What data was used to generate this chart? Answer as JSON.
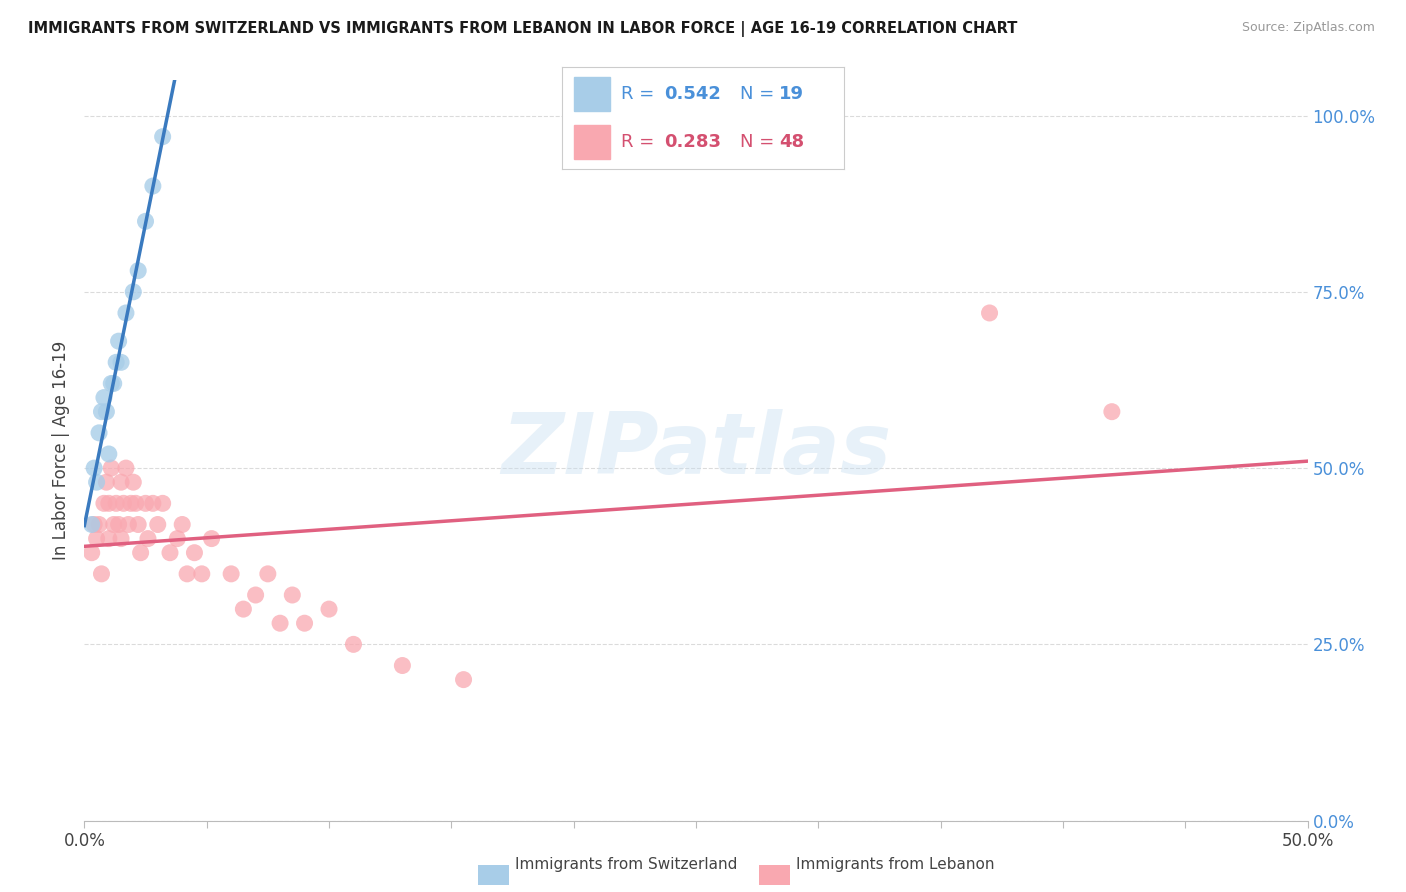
{
  "title": "IMMIGRANTS FROM SWITZERLAND VS IMMIGRANTS FROM LEBANON IN LABOR FORCE | AGE 16-19 CORRELATION CHART",
  "source": "Source: ZipAtlas.com",
  "ylabel": "In Labor Force | Age 16-19",
  "xlim": [
    0.0,
    0.5
  ],
  "ylim": [
    0.0,
    1.05
  ],
  "yticks": [
    0.0,
    0.25,
    0.5,
    0.75,
    1.0
  ],
  "ytick_labels": [
    "0.0%",
    "25.0%",
    "50.0%",
    "75.0%",
    "100.0%"
  ],
  "xtick_labels_shown": [
    "0.0%",
    "50.0%"
  ],
  "xtick_positions_shown": [
    0.0,
    0.5
  ],
  "color_switzerland": "#a8cde8",
  "color_lebanon": "#f9a8b0",
  "color_trendline_switzerland": "#3a7abf",
  "color_trendline_lebanon": "#e06080",
  "color_ytick": "#4a90d9",
  "watermark_text": "ZIPatlas",
  "legend_sw_r": "0.542",
  "legend_sw_n": "19",
  "legend_lb_r": "0.283",
  "legend_lb_n": "48",
  "background_color": "#ffffff",
  "grid_color": "#d8d8d8",
  "switzerland_x": [
    0.003,
    0.004,
    0.005,
    0.006,
    0.007,
    0.008,
    0.009,
    0.01,
    0.011,
    0.012,
    0.013,
    0.014,
    0.015,
    0.017,
    0.02,
    0.022,
    0.025,
    0.028,
    0.032
  ],
  "switzerland_y": [
    0.42,
    0.5,
    0.48,
    0.55,
    0.58,
    0.6,
    0.58,
    0.52,
    0.62,
    0.62,
    0.65,
    0.68,
    0.65,
    0.72,
    0.75,
    0.78,
    0.85,
    0.9,
    0.97
  ],
  "lebanon_x": [
    0.003,
    0.004,
    0.005,
    0.006,
    0.007,
    0.008,
    0.009,
    0.01,
    0.01,
    0.011,
    0.012,
    0.013,
    0.014,
    0.015,
    0.015,
    0.016,
    0.017,
    0.018,
    0.019,
    0.02,
    0.021,
    0.022,
    0.023,
    0.025,
    0.026,
    0.028,
    0.03,
    0.032,
    0.035,
    0.038,
    0.04,
    0.042,
    0.045,
    0.048,
    0.052,
    0.06,
    0.065,
    0.07,
    0.075,
    0.08,
    0.085,
    0.09,
    0.1,
    0.11,
    0.13,
    0.155,
    0.37,
    0.42
  ],
  "lebanon_y": [
    0.38,
    0.42,
    0.4,
    0.42,
    0.35,
    0.45,
    0.48,
    0.45,
    0.4,
    0.5,
    0.42,
    0.45,
    0.42,
    0.48,
    0.4,
    0.45,
    0.5,
    0.42,
    0.45,
    0.48,
    0.45,
    0.42,
    0.38,
    0.45,
    0.4,
    0.45,
    0.42,
    0.45,
    0.38,
    0.4,
    0.42,
    0.35,
    0.38,
    0.35,
    0.4,
    0.35,
    0.3,
    0.32,
    0.35,
    0.28,
    0.32,
    0.28,
    0.3,
    0.25,
    0.22,
    0.2,
    0.72,
    0.58
  ]
}
